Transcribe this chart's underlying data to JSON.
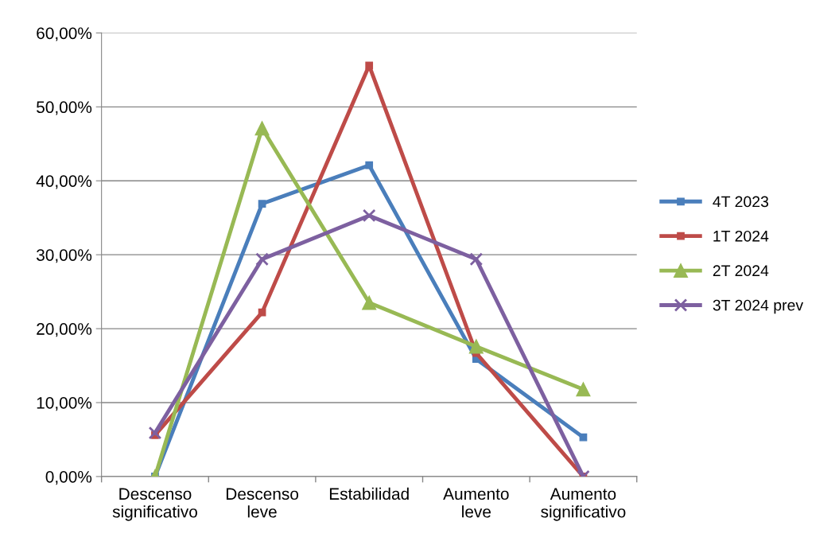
{
  "chart_data": {
    "type": "line",
    "categories": [
      "Descenso\nsignificativo",
      "Descenso\nleve",
      "Estabilidad",
      "Aumento\nleve",
      "Aumento\nsignificativo"
    ],
    "series": [
      {
        "name": "4T 2023",
        "color": "#4a7ebb",
        "marker": "square",
        "values": [
          0,
          36.9,
          42.1,
          15.9,
          5.3
        ]
      },
      {
        "name": "1T 2024",
        "color": "#be4b48",
        "marker": "square",
        "values": [
          5.6,
          22.2,
          55.6,
          16.7,
          0
        ]
      },
      {
        "name": "2T 2024",
        "color": "#98b954",
        "marker": "triangle",
        "values": [
          0,
          47.1,
          23.5,
          17.6,
          11.8
        ]
      },
      {
        "name": "3T 2024 prev",
        "color": "#7d60a0",
        "marker": "cross",
        "values": [
          5.9,
          29.4,
          35.3,
          29.4,
          0
        ]
      }
    ],
    "ylim": [
      0,
      60
    ],
    "yticks": [
      {
        "value": 0,
        "label": "0,00%"
      },
      {
        "value": 10,
        "label": "10,00%"
      },
      {
        "value": 20,
        "label": "20,00%"
      },
      {
        "value": 30,
        "label": "30,00%"
      },
      {
        "value": 40,
        "label": "40,00%"
      },
      {
        "value": 50,
        "label": "50,00%"
      },
      {
        "value": 60,
        "label": "60,00%"
      }
    ],
    "grid": "y",
    "legend": "right",
    "line_style": "solid"
  }
}
